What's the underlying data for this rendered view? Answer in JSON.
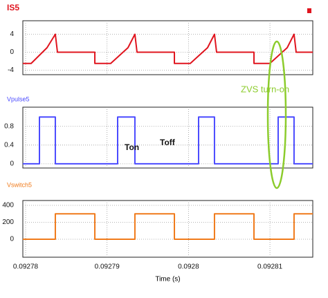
{
  "chart_data": [
    {
      "type": "line",
      "title": "IS5",
      "color": "#e0141e",
      "x": [
        0.09277966,
        0.09278068,
        0.09278263,
        0.09278365,
        0.09278391,
        0.0927885,
        0.0927885,
        0.09279045,
        0.09279257,
        0.09279342,
        0.09279368,
        0.09279827,
        0.09279827,
        0.09280022,
        0.09280234,
        0.09280319,
        0.09280345,
        0.09280804,
        0.09280804,
        0.09280999,
        0.09281212,
        0.09281296,
        0.09281322,
        0.09281526
      ],
      "values": [
        -2.5,
        -2.5,
        1,
        4,
        0,
        0,
        -2.5,
        -2.5,
        1,
        4,
        0,
        0,
        -2.5,
        -2.5,
        1,
        4,
        0,
        0,
        -2.5,
        -2.5,
        1,
        4,
        0,
        0
      ],
      "xlim": [
        0.09277966,
        0.09281526
      ],
      "ylim": [
        -5,
        7
      ],
      "yticks": [
        -4,
        0,
        4
      ],
      "grid": true
    },
    {
      "type": "line",
      "title": "Vpulse5",
      "color": "#4a4aff",
      "x": [
        0.09277966,
        0.0927817,
        0.0927817,
        0.09278365,
        0.09278365,
        0.0927913,
        0.0927913,
        0.09279342,
        0.09279342,
        0.09280124,
        0.09280124,
        0.09280319,
        0.09280319,
        0.09281101,
        0.09281101,
        0.09281296,
        0.09281296,
        0.09281526
      ],
      "values": [
        0,
        0,
        1,
        1,
        0,
        0,
        1,
        1,
        0,
        0,
        1,
        1,
        0,
        0,
        1,
        1,
        0,
        0
      ],
      "xlim": [
        0.09277966,
        0.09281526
      ],
      "ylim": [
        -0.09,
        1.21
      ],
      "yticks": [
        0,
        0.4,
        0.8
      ],
      "grid": true,
      "annotations": [
        "Ton",
        "Toff",
        "ZVS turn-on"
      ]
    },
    {
      "type": "line",
      "title": "Vswitch5",
      "color": "#f07a1a",
      "x": [
        0.09277966,
        0.09278365,
        0.09278365,
        0.0927885,
        0.0927885,
        0.09279342,
        0.09279342,
        0.09279827,
        0.09279827,
        0.09280319,
        0.09280319,
        0.09280804,
        0.09280804,
        0.09281296,
        0.09281296,
        0.09281526
      ],
      "values": [
        0,
        0,
        300,
        300,
        0,
        0,
        300,
        300,
        0,
        0,
        300,
        300,
        0,
        0,
        300,
        300
      ],
      "xlim": [
        0.09277966,
        0.09281526
      ],
      "ylim": [
        -212,
        457
      ],
      "yticks": [
        0,
        200,
        400
      ],
      "grid": true,
      "xticks": [
        0.09278,
        0.09279,
        0.0928,
        0.09281
      ],
      "xlabel": "Time (s)"
    }
  ]
}
